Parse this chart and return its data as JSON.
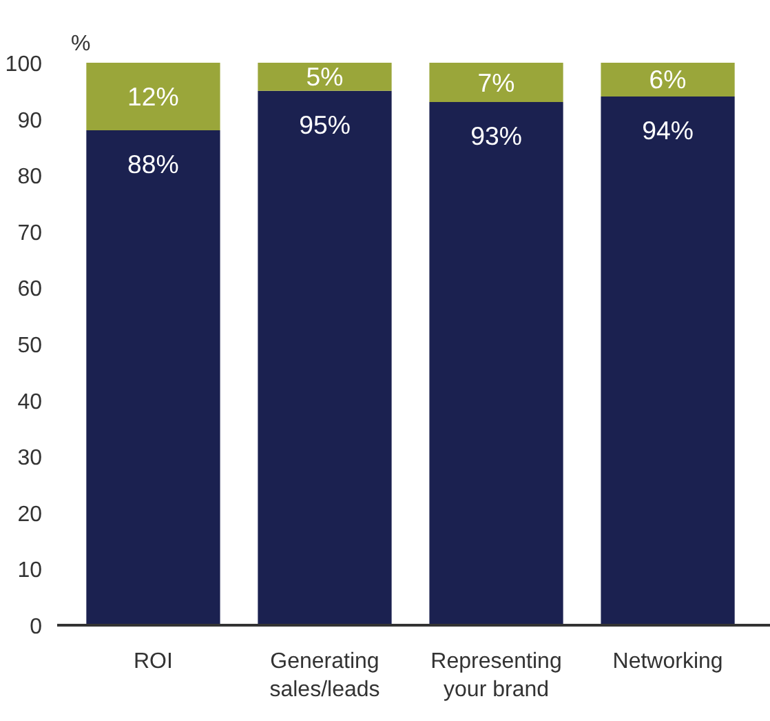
{
  "chart_data": {
    "type": "bar",
    "stacked": true,
    "ylabel": "%",
    "categories": [
      "ROI",
      "Generating\nsales/leads",
      "Representing\nyour brand",
      "Networking"
    ],
    "series": [
      {
        "color": "#1b2150",
        "values": [
          88,
          95,
          93,
          94
        ],
        "value_labels": [
          "88%",
          "95%",
          "93%",
          "94%"
        ]
      },
      {
        "color": "#9aa63a",
        "values": [
          12,
          5,
          7,
          6
        ],
        "value_labels": [
          "12%",
          "5%",
          "7%",
          "6%"
        ]
      }
    ],
    "ylim": [
      0,
      100
    ],
    "yticks": [
      0,
      10,
      20,
      30,
      40,
      50,
      60,
      70,
      80,
      90,
      100
    ],
    "grid": false
  }
}
